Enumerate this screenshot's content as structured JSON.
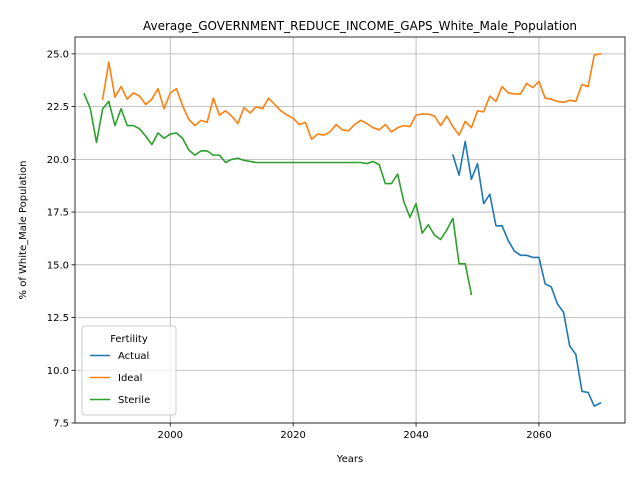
{
  "chart_data": {
    "type": "line",
    "title": "Average_GOVERNMENT_REDUCE_INCOME_GAPS_White_Male_Population",
    "xlabel": "Years",
    "ylabel": "% of White_Male Population",
    "xlim": [
      1984.5,
      2074
    ],
    "ylim": [
      7.5,
      25.8
    ],
    "xticks": [
      2000,
      2020,
      2040,
      2060
    ],
    "yticks": [
      7.5,
      10.0,
      12.5,
      15.0,
      17.5,
      20.0,
      22.5,
      25.0
    ],
    "xtick_labels": [
      "2000",
      "2020",
      "2040",
      "2060"
    ],
    "ytick_labels": [
      "7.5",
      "10.0",
      "12.5",
      "15.0",
      "17.5",
      "20.0",
      "22.5",
      "25.0"
    ],
    "grid": true,
    "legend": {
      "title": "Fertility",
      "placement": "lower-left"
    },
    "series": [
      {
        "name": "Actual",
        "color": "#1f77b4",
        "x": [
          2046,
          2047,
          2048,
          2049,
          2050,
          2051,
          2052,
          2053,
          2054,
          2055,
          2056,
          2057,
          2058,
          2059,
          2060,
          2061,
          2062,
          2063,
          2064,
          2065,
          2066,
          2067,
          2068,
          2069,
          2070
        ],
        "y": [
          20.2,
          19.25,
          20.85,
          19.05,
          19.8,
          17.9,
          18.35,
          16.85,
          16.85,
          16.15,
          15.65,
          15.45,
          15.45,
          15.35,
          15.35,
          14.1,
          13.95,
          13.15,
          12.75,
          11.15,
          10.75,
          9.0,
          8.95,
          8.3,
          8.45
        ]
      },
      {
        "name": "Ideal",
        "color": "#ff7f0e",
        "x": [
          1989,
          1990,
          1991,
          1992,
          1993,
          1994,
          1995,
          1996,
          1997,
          1998,
          1999,
          2000,
          2001,
          2002,
          2003,
          2004,
          2005,
          2006,
          2007,
          2008,
          2009,
          2010,
          2011,
          2012,
          2013,
          2014,
          2015,
          2016,
          2017,
          2018,
          2019,
          2020,
          2021,
          2022,
          2023,
          2024,
          2025,
          2026,
          2027,
          2028,
          2029,
          2030,
          2031,
          2032,
          2033,
          2034,
          2035,
          2036,
          2037,
          2038,
          2039,
          2040,
          2041,
          2042,
          2043,
          2044,
          2045,
          2046,
          2047,
          2048,
          2049,
          2050,
          2051,
          2052,
          2053,
          2054,
          2055,
          2056,
          2057,
          2058,
          2059,
          2060,
          2061,
          2062,
          2063,
          2064,
          2065,
          2066,
          2067,
          2068,
          2069,
          2070
        ],
        "y": [
          22.85,
          24.6,
          22.95,
          23.45,
          22.85,
          23.15,
          23.0,
          22.6,
          22.85,
          23.35,
          22.4,
          23.15,
          23.35,
          22.55,
          21.9,
          21.6,
          21.85,
          21.75,
          22.9,
          22.1,
          22.3,
          22.05,
          21.7,
          22.45,
          22.2,
          22.5,
          22.4,
          22.9,
          22.6,
          22.3,
          22.1,
          21.95,
          21.65,
          21.75,
          20.95,
          21.2,
          21.15,
          21.3,
          21.65,
          21.4,
          21.35,
          21.65,
          21.85,
          21.7,
          21.5,
          21.4,
          21.65,
          21.3,
          21.5,
          21.6,
          21.55,
          22.1,
          22.15,
          22.15,
          22.05,
          21.6,
          22.05,
          21.55,
          21.15,
          21.8,
          21.5,
          22.3,
          22.25,
          23.0,
          22.75,
          23.45,
          23.15,
          23.1,
          23.1,
          23.6,
          23.4,
          23.7,
          22.9,
          22.85,
          22.75,
          22.7,
          22.8,
          22.75,
          23.55,
          23.45,
          24.95,
          25.0
        ]
      },
      {
        "name": "Sterile",
        "color": "#2ca02c",
        "x": [
          1986,
          1987,
          1988,
          1989,
          1990,
          1991,
          1992,
          1993,
          1994,
          1995,
          1996,
          1997,
          1998,
          1999,
          2000,
          2001,
          2002,
          2003,
          2004,
          2005,
          2006,
          2007,
          2008,
          2009,
          2010,
          2011,
          2012,
          2013,
          2014,
          2015,
          2016,
          2017,
          2018,
          2019,
          2020,
          2021,
          2022,
          2023,
          2024,
          2025,
          2026,
          2027,
          2028,
          2029,
          2030,
          2031,
          2032,
          2033,
          2034,
          2035,
          2036,
          2037,
          2038,
          2039,
          2040,
          2041,
          2042,
          2043,
          2044,
          2045,
          2046,
          2047,
          2048,
          2049
        ],
        "y": [
          23.1,
          22.4,
          20.8,
          22.4,
          22.75,
          21.6,
          22.4,
          21.6,
          21.6,
          21.45,
          21.1,
          20.7,
          21.25,
          21.0,
          21.2,
          21.25,
          21.0,
          20.45,
          20.2,
          20.4,
          20.4,
          20.2,
          20.2,
          19.85,
          20.0,
          20.05,
          19.95,
          19.9,
          19.85,
          19.85,
          19.85,
          19.85,
          19.85,
          19.85,
          19.85,
          19.85,
          19.85,
          19.85,
          19.85,
          19.85,
          19.85,
          19.85,
          19.85,
          19.85,
          19.85,
          19.85,
          19.8,
          19.9,
          19.75,
          18.85,
          18.85,
          19.3,
          18.0,
          17.25,
          17.9,
          16.5,
          16.9,
          16.4,
          16.2,
          16.65,
          17.2,
          15.05,
          15.05,
          13.6
        ]
      }
    ]
  }
}
